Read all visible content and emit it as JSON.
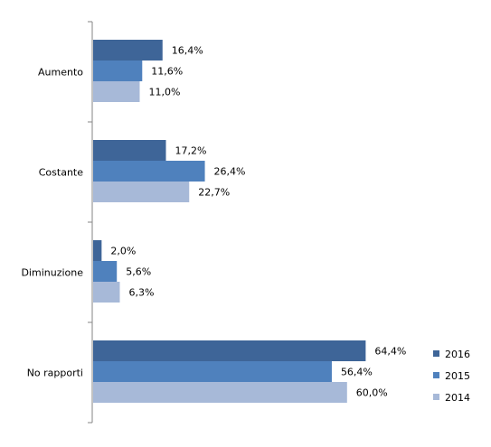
{
  "chart_data": {
    "type": "bar",
    "orientation": "horizontal",
    "categories": [
      "Aumento",
      "Costante",
      "Diminuzione",
      "No rapporti"
    ],
    "series": [
      {
        "name": "2016",
        "color": "#3e6598",
        "values": [
          16.4,
          17.2,
          2.0,
          64.4
        ],
        "labels": [
          "16,4%",
          "17,2%",
          "2,0%",
          "64,4%"
        ]
      },
      {
        "name": "2015",
        "color": "#4f81bd",
        "values": [
          11.6,
          26.4,
          5.6,
          56.4
        ],
        "labels": [
          "11,6%",
          "26,4%",
          "5,6%",
          "56,4%"
        ]
      },
      {
        "name": "2014",
        "color": "#a7b9d8",
        "values": [
          11.0,
          22.7,
          6.3,
          60.0
        ],
        "labels": [
          "11,0%",
          "22,7%",
          "6,3%",
          "60,0%"
        ]
      }
    ],
    "title": "",
    "xlabel": "",
    "ylabel": "",
    "xlim": [
      0,
      80
    ],
    "grid": false,
    "legend_position": "right"
  }
}
